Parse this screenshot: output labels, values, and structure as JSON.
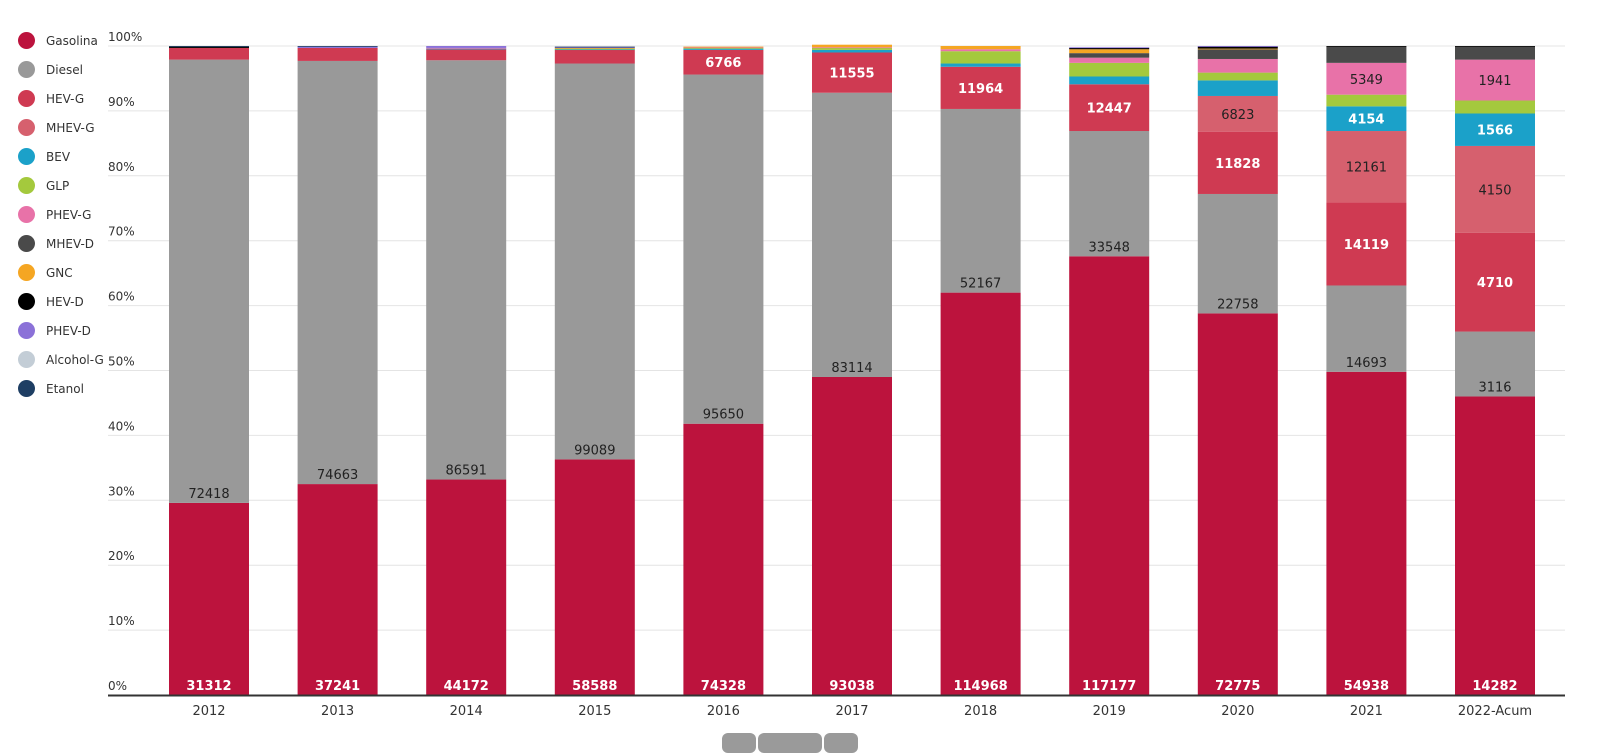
{
  "chart_data": {
    "type": "bar",
    "stacked": true,
    "normalized_percent": true,
    "title": "",
    "xlabel": "",
    "ylabel": "",
    "ylim": [
      0,
      100
    ],
    "y_ticks": [
      "0%",
      "10%",
      "20%",
      "30%",
      "40%",
      "50%",
      "60%",
      "70%",
      "80%",
      "90%",
      "100%"
    ],
    "grid": true,
    "legend_position": "left",
    "categories": [
      "2012",
      "2013",
      "2014",
      "2015",
      "2016",
      "2017",
      "2018",
      "2019",
      "2020",
      "2021",
      "2022-Acum"
    ],
    "series": [
      {
        "name": "Gasolina",
        "color": "#bc133d",
        "label_color": "#ffffff",
        "share_pct": [
          29.6,
          32.5,
          33.2,
          36.3,
          41.8,
          49.0,
          62.0,
          67.6,
          58.8,
          49.8,
          46.0
        ],
        "labels": [
          "31312",
          "37241",
          "44172",
          "58588",
          "74328",
          "93038",
          "114968",
          "117177",
          "72775",
          "54938",
          "14282"
        ]
      },
      {
        "name": "Diesel",
        "color": "#999999",
        "label_color": "#222222",
        "share_pct": [
          68.3,
          65.2,
          64.6,
          61.0,
          53.8,
          43.8,
          28.3,
          19.3,
          18.4,
          13.3,
          10.0
        ],
        "labels": [
          "72418",
          "74663",
          "86591",
          "99089",
          "95650",
          "83114",
          "52167",
          "33548",
          "22758",
          "14693",
          "3116"
        ]
      },
      {
        "name": "HEV-G",
        "color": "#cf3a52",
        "label_color": "#ffffff",
        "share_pct": [
          1.8,
          2.0,
          1.7,
          2.1,
          3.8,
          6.2,
          6.5,
          7.2,
          9.6,
          12.8,
          15.2
        ],
        "labels": [
          "",
          "",
          "",
          "",
          "6766",
          "11555",
          "11964",
          "12447",
          "11828",
          "14119",
          "4710"
        ]
      },
      {
        "name": "MHEV-G",
        "color": "#d6606e",
        "label_color": "#222222",
        "share_pct": [
          0,
          0,
          0,
          0,
          0,
          0,
          0,
          0,
          5.5,
          11.0,
          13.4
        ],
        "labels": [
          "",
          "",
          "",
          "",
          "",
          "",
          "",
          "",
          "6823",
          "12161",
          "4150"
        ]
      },
      {
        "name": "BEV",
        "color": "#1ba1c9",
        "label_color": "#ffffff",
        "share_pct": [
          0,
          0,
          0.1,
          0.1,
          0.2,
          0.4,
          0.5,
          1.2,
          2.4,
          3.8,
          5.0
        ],
        "labels": [
          "",
          "",
          "",
          "",
          "",
          "",
          "",
          "",
          "",
          "4154",
          "1566"
        ]
      },
      {
        "name": "GLP",
        "color": "#a4c93d",
        "label_color": "#222222",
        "share_pct": [
          0,
          0,
          0,
          0.1,
          0.1,
          0.3,
          1.9,
          2.1,
          1.2,
          1.8,
          2.0
        ],
        "labels": [
          "",
          "",
          "",
          "",
          "",
          "",
          "",
          "",
          "",
          "",
          ""
        ]
      },
      {
        "name": "PHEV-G",
        "color": "#e872a8",
        "label_color": "#222222",
        "share_pct": [
          0,
          0,
          0.1,
          0,
          0.1,
          0.1,
          0.3,
          0.8,
          2.1,
          4.9,
          6.3
        ],
        "labels": [
          "",
          "",
          "",
          "",
          "",
          "",
          "",
          "",
          "",
          "5349",
          "1941"
        ]
      },
      {
        "name": "MHEV-D",
        "color": "#4a4a4a",
        "label_color": "#ffffff",
        "share_pct": [
          0,
          0,
          0,
          0,
          0,
          0,
          0,
          0.7,
          1.5,
          2.5,
          2.0
        ],
        "labels": [
          "",
          "",
          "",
          "",
          "",
          "",
          "",
          "",
          "",
          "",
          ""
        ]
      },
      {
        "name": "GNC",
        "color": "#f5a623",
        "label_color": "#222222",
        "share_pct": [
          0,
          0,
          0,
          0.1,
          0.1,
          0.4,
          0.5,
          0.6,
          0.1,
          0,
          0
        ],
        "labels": [
          "",
          "",
          "",
          "",
          "",
          "",
          "",
          "",
          "",
          "",
          ""
        ]
      },
      {
        "name": "HEV-D",
        "color": "#000000",
        "label_color": "#ffffff",
        "share_pct": [
          0.2,
          0,
          0,
          0,
          0,
          0,
          0,
          0.2,
          0.3,
          0.1,
          0.1
        ],
        "labels": [
          "",
          "",
          "",
          "",
          "",
          "",
          "",
          "",
          "",
          "",
          ""
        ]
      },
      {
        "name": "PHEV-D",
        "color": "#8b71d8",
        "label_color": "#ffffff",
        "share_pct": [
          0,
          0.2,
          0.3,
          0.1,
          0,
          0,
          0,
          0.1,
          0.1,
          0,
          0
        ],
        "labels": [
          "",
          "",
          "",
          "",
          "",
          "",
          "",
          "",
          "",
          "",
          ""
        ]
      },
      {
        "name": "Alcohol-G",
        "color": "#c3cdd6",
        "label_color": "#222222",
        "share_pct": [
          0,
          0,
          0,
          0,
          0,
          0,
          0,
          0,
          0,
          0,
          0
        ],
        "labels": [
          "",
          "",
          "",
          "",
          "",
          "",
          "",
          "",
          "",
          "",
          ""
        ]
      },
      {
        "name": "Etanol",
        "color": "#1e3e63",
        "label_color": "#ffffff",
        "share_pct": [
          0.1,
          0.1,
          0,
          0.1,
          0,
          0,
          0,
          0,
          0,
          0,
          0
        ],
        "labels": [
          "",
          "",
          "",
          "",
          "",
          "",
          "",
          "",
          "",
          "",
          ""
        ]
      }
    ]
  }
}
